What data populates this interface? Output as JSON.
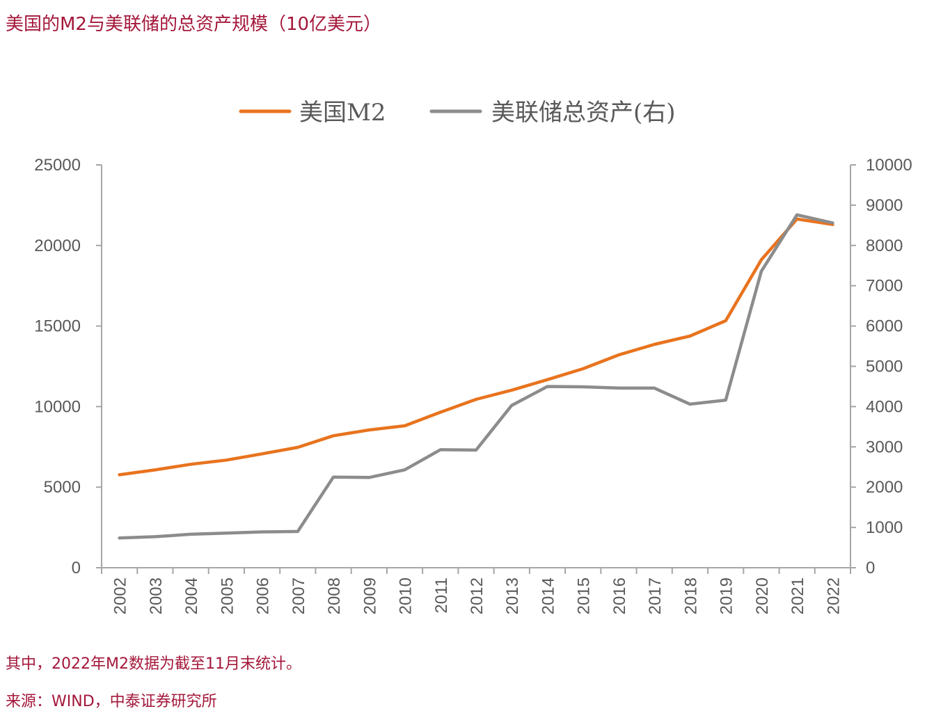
{
  "title": "美国的M2与美联储的总资产规模（10亿美元）",
  "note": "其中，2022年M2数据为截至11月末统计。",
  "source": "来源：WIND，中泰证券研究所",
  "chart_data": {
    "type": "line",
    "categories": [
      "2002",
      "2003",
      "2004",
      "2005",
      "2006",
      "2007",
      "2008",
      "2009",
      "2010",
      "2011",
      "2012",
      "2013",
      "2014",
      "2015",
      "2016",
      "2017",
      "2018",
      "2019",
      "2020",
      "2021",
      "2022"
    ],
    "series": [
      {
        "name": "美国M2",
        "axis": "left",
        "color": "#e8731e",
        "values": [
          5770,
          6070,
          6420,
          6680,
          7070,
          7470,
          8190,
          8550,
          8810,
          9650,
          10450,
          11020,
          11670,
          12350,
          13210,
          13860,
          14380,
          15330,
          19110,
          21640,
          21300
        ]
      },
      {
        "name": "美联储总资产(右)",
        "axis": "right",
        "color": "#8c8c8c",
        "values": [
          740,
          770,
          830,
          860,
          890,
          900,
          2250,
          2240,
          2430,
          2930,
          2920,
          4030,
          4500,
          4490,
          4460,
          4460,
          4060,
          4160,
          7360,
          8760,
          8560
        ]
      }
    ],
    "left_axis": {
      "min": 0,
      "max": 25000,
      "ticks": [
        "0",
        "5000",
        "10000",
        "15000",
        "20000",
        "25000"
      ]
    },
    "right_axis": {
      "min": 0,
      "max": 10000,
      "ticks": [
        "0",
        "1000",
        "2000",
        "3000",
        "4000",
        "5000",
        "6000",
        "7000",
        "8000",
        "9000",
        "10000"
      ]
    },
    "legend": [
      "美国M2",
      "美联储总资产(右)"
    ],
    "legend_position": "top-center"
  }
}
